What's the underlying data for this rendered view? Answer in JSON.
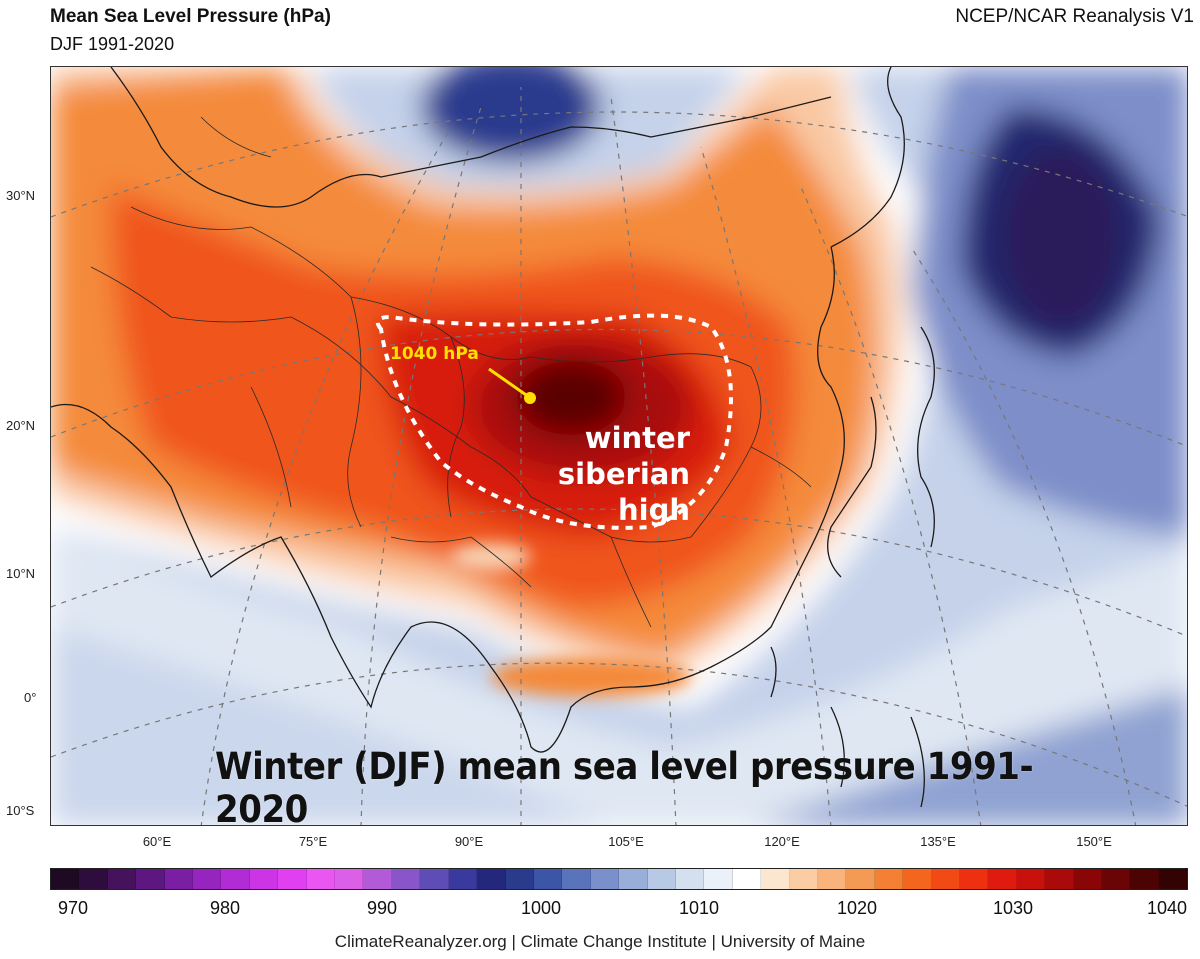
{
  "header": {
    "title": "Mean Sea Level Pressure (hPa)",
    "subtitle": "DJF 1991-2020",
    "source": "NCEP/NCAR Reanalysis V1"
  },
  "map": {
    "lat_labels": [
      "30°N",
      "20°N",
      "10°N",
      "0°",
      "10°S"
    ],
    "lon_labels": [
      "60°E",
      "75°E",
      "90°E",
      "105°E",
      "120°E",
      "135°E",
      "150°E"
    ],
    "annotation": {
      "value_label": "1040 hPa",
      "name_line1": "winter",
      "name_line2": "siberian high"
    },
    "overlay_title": "Winter (DJF) mean sea level pressure 1991-2020"
  },
  "colorbar": {
    "min": 970,
    "max": 1040,
    "tick_labels": [
      "970",
      "980",
      "990",
      "1000",
      "1010",
      "1020",
      "1030",
      "1040"
    ],
    "colors": [
      "#1f0a24",
      "#2e0d3d",
      "#46125c",
      "#5c1780",
      "#7a1ea3",
      "#9625bf",
      "#b22cd6",
      "#cc35e6",
      "#e040f0",
      "#ea56f2",
      "#dc5fe8",
      "#b35ad9",
      "#8a55c8",
      "#5e4db4",
      "#3a3a9e",
      "#23287c",
      "#2a3b8e",
      "#3d55a6",
      "#5a74bc",
      "#7990cc",
      "#99aed9",
      "#b8c9e6",
      "#d4e0f0",
      "#ebf1f8",
      "#ffffff",
      "#fde6cf",
      "#fbcda4",
      "#f8b47c",
      "#f59a55",
      "#f48034",
      "#f4661e",
      "#f24a14",
      "#ee2f10",
      "#e01a0e",
      "#c8100c",
      "#aa0a0a",
      "#8a0606",
      "#6b0404",
      "#4e0303",
      "#330202"
    ]
  },
  "footer": "ClimateReanalyzer.org | Climate Change Institute | University of Maine"
}
